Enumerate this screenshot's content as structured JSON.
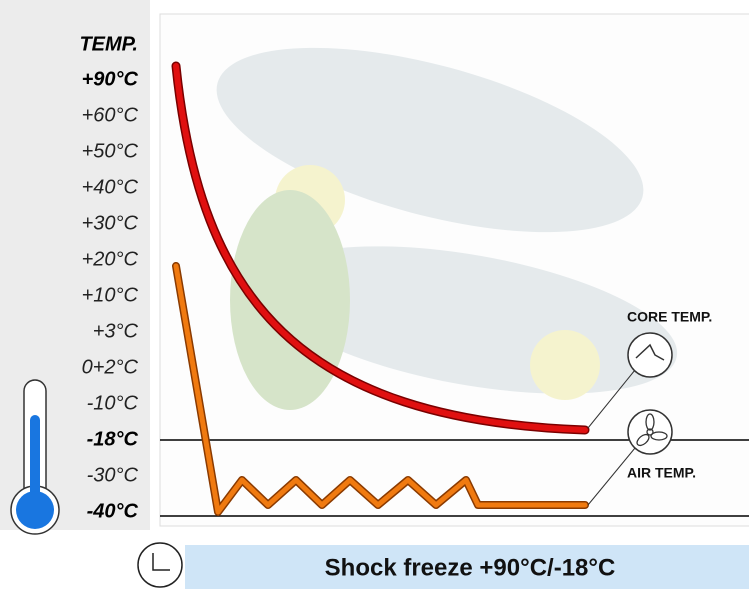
{
  "axis": {
    "title": "TEMP.",
    "labels": [
      "+90°C",
      "+60°C",
      "+50°C",
      "+40°C",
      "+30°C",
      "+20°C",
      "+10°C",
      "+3°C",
      "0+2°C",
      "-10°C",
      "-18°C",
      "-30°C",
      "-40°C"
    ]
  },
  "annotations": {
    "core": "CORE TEMP.",
    "air": "AIR TEMP."
  },
  "footer": "Shock freeze +90°C/-18°C"
}
